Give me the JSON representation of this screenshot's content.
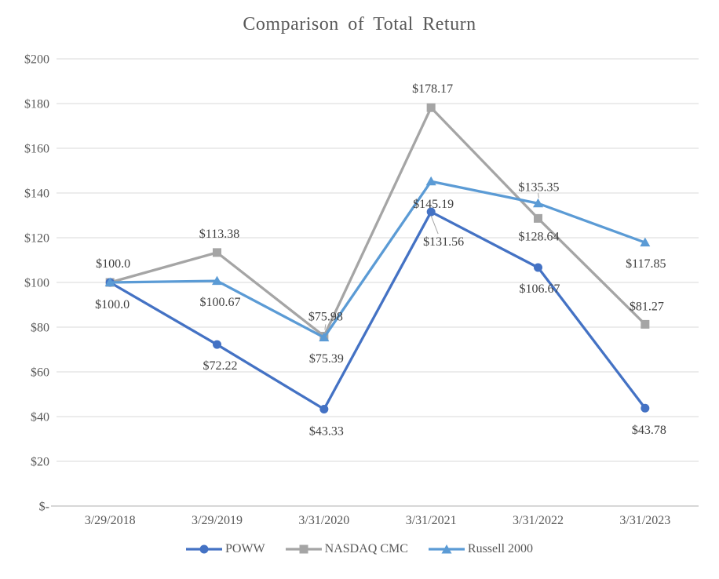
{
  "title": "Comparison of Total Return",
  "colors": {
    "title_text": "#595959",
    "axis_text": "#595959",
    "data_label_text": "#404040",
    "gridline": "#D9D9D9",
    "axis_line": "#BFBFBF",
    "leader": "#A6A6A6",
    "background": "#FFFFFF"
  },
  "chart_data": {
    "type": "line",
    "title": "Comparison of Total Return",
    "categories": [
      "3/29/2018",
      "3/29/2019",
      "3/31/2020",
      "3/31/2021",
      "3/31/2022",
      "3/31/2023"
    ],
    "ylim": [
      0,
      200
    ],
    "ytick_step": 20,
    "ytick_labels_bottom_up": [
      "$-",
      "$20",
      "$40",
      "$60",
      "$80",
      "$100",
      "$120",
      "$140",
      "$160",
      "$180",
      "$200"
    ],
    "grid": true,
    "legend_position": "bottom",
    "series": [
      {
        "name": "POWW",
        "color": "#4472C4",
        "marker": "circle",
        "values": [
          100.0,
          72.22,
          43.33,
          131.56,
          106.67,
          43.78
        ],
        "point_labels": [
          "$100.0",
          "$72.22",
          "$43.33",
          "$131.56",
          "$106.67",
          "$43.78"
        ],
        "label_offsets": [
          [
            3,
            33
          ],
          [
            4,
            32
          ],
          [
            3,
            33
          ],
          [
            16,
            43
          ],
          [
            2,
            32
          ],
          [
            5,
            33
          ]
        ],
        "leaders": {
          "3": [
            0,
            5,
            9,
            28
          ]
        }
      },
      {
        "name": "NASDAQ CMC",
        "color": "#A5A5A5",
        "marker": "square",
        "values": [
          100.0,
          113.38,
          75.98,
          178.17,
          128.64,
          81.27
        ],
        "point_labels": [
          "$100.0",
          "$113.38",
          "$75.98",
          "$178.17",
          "$128.64",
          "$81.27"
        ],
        "label_offsets": [
          [
            4,
            -19
          ],
          [
            3,
            -19
          ],
          [
            2,
            -20
          ],
          [
            2,
            -19
          ],
          [
            1,
            28
          ],
          [
            2,
            -18
          ]
        ],
        "leaders": {
          "2": [
            1,
            -8,
            2,
            -15
          ]
        }
      },
      {
        "name": "Russell 2000",
        "color": "#5B9BD5",
        "marker": "triangle",
        "values": [
          100.0,
          100.67,
          75.39,
          145.19,
          135.35,
          117.85
        ],
        "point_labels": [
          null,
          "$100.67",
          "$75.39",
          "$145.19",
          "$135.35",
          "$117.85"
        ],
        "label_offsets": [
          null,
          [
            4,
            32
          ],
          [
            3,
            32
          ],
          [
            3,
            34
          ],
          [
            1,
            -16
          ],
          [
            1,
            32
          ]
        ],
        "leaders": {
          "4": [
            1,
            -7,
            0,
            -13
          ]
        }
      }
    ]
  }
}
